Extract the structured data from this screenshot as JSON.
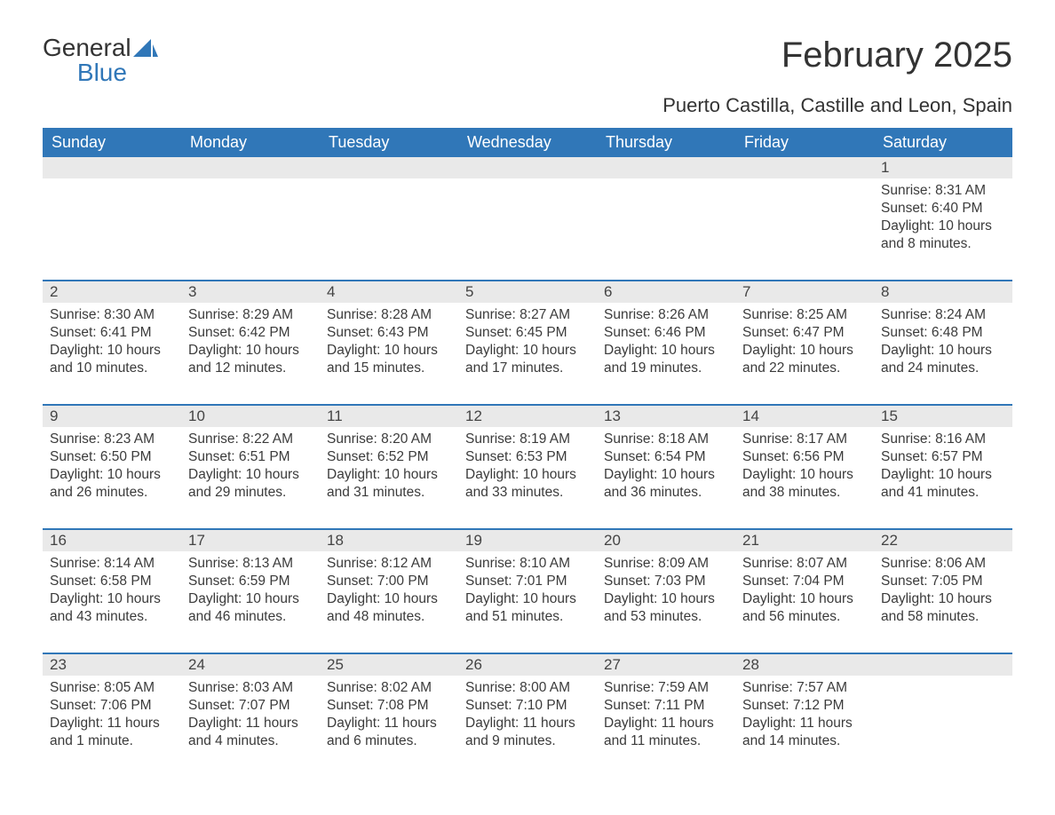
{
  "logo": {
    "word1": "General",
    "word2": "Blue"
  },
  "title": "February 2025",
  "subtitle": "Puerto Castilla, Castille and Leon, Spain",
  "colors": {
    "header_bg": "#3077b8",
    "header_text": "#ffffff",
    "daynum_bg": "#e9e9e9",
    "text": "#333333",
    "accent": "#3077b8"
  },
  "day_labels": [
    "Sunday",
    "Monday",
    "Tuesday",
    "Wednesday",
    "Thursday",
    "Friday",
    "Saturday"
  ],
  "weeks": [
    [
      null,
      null,
      null,
      null,
      null,
      null,
      {
        "day": "1",
        "sunrise": "Sunrise: 8:31 AM",
        "sunset": "Sunset: 6:40 PM",
        "daylight": "Daylight: 10 hours and 8 minutes."
      }
    ],
    [
      {
        "day": "2",
        "sunrise": "Sunrise: 8:30 AM",
        "sunset": "Sunset: 6:41 PM",
        "daylight": "Daylight: 10 hours and 10 minutes."
      },
      {
        "day": "3",
        "sunrise": "Sunrise: 8:29 AM",
        "sunset": "Sunset: 6:42 PM",
        "daylight": "Daylight: 10 hours and 12 minutes."
      },
      {
        "day": "4",
        "sunrise": "Sunrise: 8:28 AM",
        "sunset": "Sunset: 6:43 PM",
        "daylight": "Daylight: 10 hours and 15 minutes."
      },
      {
        "day": "5",
        "sunrise": "Sunrise: 8:27 AM",
        "sunset": "Sunset: 6:45 PM",
        "daylight": "Daylight: 10 hours and 17 minutes."
      },
      {
        "day": "6",
        "sunrise": "Sunrise: 8:26 AM",
        "sunset": "Sunset: 6:46 PM",
        "daylight": "Daylight: 10 hours and 19 minutes."
      },
      {
        "day": "7",
        "sunrise": "Sunrise: 8:25 AM",
        "sunset": "Sunset: 6:47 PM",
        "daylight": "Daylight: 10 hours and 22 minutes."
      },
      {
        "day": "8",
        "sunrise": "Sunrise: 8:24 AM",
        "sunset": "Sunset: 6:48 PM",
        "daylight": "Daylight: 10 hours and 24 minutes."
      }
    ],
    [
      {
        "day": "9",
        "sunrise": "Sunrise: 8:23 AM",
        "sunset": "Sunset: 6:50 PM",
        "daylight": "Daylight: 10 hours and 26 minutes."
      },
      {
        "day": "10",
        "sunrise": "Sunrise: 8:22 AM",
        "sunset": "Sunset: 6:51 PM",
        "daylight": "Daylight: 10 hours and 29 minutes."
      },
      {
        "day": "11",
        "sunrise": "Sunrise: 8:20 AM",
        "sunset": "Sunset: 6:52 PM",
        "daylight": "Daylight: 10 hours and 31 minutes."
      },
      {
        "day": "12",
        "sunrise": "Sunrise: 8:19 AM",
        "sunset": "Sunset: 6:53 PM",
        "daylight": "Daylight: 10 hours and 33 minutes."
      },
      {
        "day": "13",
        "sunrise": "Sunrise: 8:18 AM",
        "sunset": "Sunset: 6:54 PM",
        "daylight": "Daylight: 10 hours and 36 minutes."
      },
      {
        "day": "14",
        "sunrise": "Sunrise: 8:17 AM",
        "sunset": "Sunset: 6:56 PM",
        "daylight": "Daylight: 10 hours and 38 minutes."
      },
      {
        "day": "15",
        "sunrise": "Sunrise: 8:16 AM",
        "sunset": "Sunset: 6:57 PM",
        "daylight": "Daylight: 10 hours and 41 minutes."
      }
    ],
    [
      {
        "day": "16",
        "sunrise": "Sunrise: 8:14 AM",
        "sunset": "Sunset: 6:58 PM",
        "daylight": "Daylight: 10 hours and 43 minutes."
      },
      {
        "day": "17",
        "sunrise": "Sunrise: 8:13 AM",
        "sunset": "Sunset: 6:59 PM",
        "daylight": "Daylight: 10 hours and 46 minutes."
      },
      {
        "day": "18",
        "sunrise": "Sunrise: 8:12 AM",
        "sunset": "Sunset: 7:00 PM",
        "daylight": "Daylight: 10 hours and 48 minutes."
      },
      {
        "day": "19",
        "sunrise": "Sunrise: 8:10 AM",
        "sunset": "Sunset: 7:01 PM",
        "daylight": "Daylight: 10 hours and 51 minutes."
      },
      {
        "day": "20",
        "sunrise": "Sunrise: 8:09 AM",
        "sunset": "Sunset: 7:03 PM",
        "daylight": "Daylight: 10 hours and 53 minutes."
      },
      {
        "day": "21",
        "sunrise": "Sunrise: 8:07 AM",
        "sunset": "Sunset: 7:04 PM",
        "daylight": "Daylight: 10 hours and 56 minutes."
      },
      {
        "day": "22",
        "sunrise": "Sunrise: 8:06 AM",
        "sunset": "Sunset: 7:05 PM",
        "daylight": "Daylight: 10 hours and 58 minutes."
      }
    ],
    [
      {
        "day": "23",
        "sunrise": "Sunrise: 8:05 AM",
        "sunset": "Sunset: 7:06 PM",
        "daylight": "Daylight: 11 hours and 1 minute."
      },
      {
        "day": "24",
        "sunrise": "Sunrise: 8:03 AM",
        "sunset": "Sunset: 7:07 PM",
        "daylight": "Daylight: 11 hours and 4 minutes."
      },
      {
        "day": "25",
        "sunrise": "Sunrise: 8:02 AM",
        "sunset": "Sunset: 7:08 PM",
        "daylight": "Daylight: 11 hours and 6 minutes."
      },
      {
        "day": "26",
        "sunrise": "Sunrise: 8:00 AM",
        "sunset": "Sunset: 7:10 PM",
        "daylight": "Daylight: 11 hours and 9 minutes."
      },
      {
        "day": "27",
        "sunrise": "Sunrise: 7:59 AM",
        "sunset": "Sunset: 7:11 PM",
        "daylight": "Daylight: 11 hours and 11 minutes."
      },
      {
        "day": "28",
        "sunrise": "Sunrise: 7:57 AM",
        "sunset": "Sunset: 7:12 PM",
        "daylight": "Daylight: 11 hours and 14 minutes."
      },
      null
    ]
  ]
}
